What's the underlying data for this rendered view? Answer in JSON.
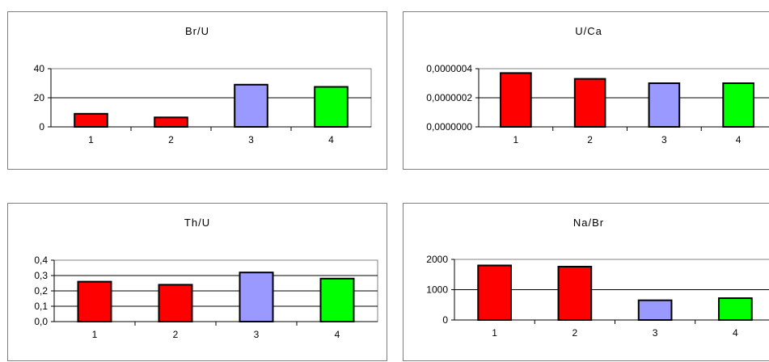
{
  "chart_data": [
    {
      "type": "bar",
      "title": "Br/U",
      "categories": [
        "1",
        "2",
        "3",
        "4"
      ],
      "values": [
        9,
        6.5,
        29,
        27.5
      ],
      "bar_colors": [
        "#ff0000",
        "#ff0000",
        "#9999ff",
        "#00ff00"
      ],
      "yticks": [
        "0",
        "20",
        "40"
      ],
      "ylim": [
        0,
        40
      ],
      "grid": true
    },
    {
      "type": "bar",
      "title": "U/Ca",
      "categories": [
        "1",
        "2",
        "3",
        "4"
      ],
      "values": [
        3.7e-07,
        3.3e-07,
        3e-07,
        3e-07
      ],
      "bar_colors": [
        "#ff0000",
        "#ff0000",
        "#9999ff",
        "#00ff00"
      ],
      "yticks": [
        "0,0000000",
        "0,0000002",
        "0,0000004"
      ],
      "ylim": [
        0,
        4e-07
      ],
      "grid": true
    },
    {
      "type": "bar",
      "title": "Th/U",
      "categories": [
        "1",
        "2",
        "3",
        "4"
      ],
      "values": [
        0.26,
        0.24,
        0.32,
        0.28
      ],
      "bar_colors": [
        "#ff0000",
        "#ff0000",
        "#9999ff",
        "#00ff00"
      ],
      "yticks": [
        "0,0",
        "0,1",
        "0,2",
        "0,3",
        "0,4"
      ],
      "ylim": [
        0,
        0.4
      ],
      "grid": true
    },
    {
      "type": "bar",
      "title": "Na/Br",
      "categories": [
        "1",
        "2",
        "3",
        "4"
      ],
      "values": [
        1800,
        1760,
        650,
        720
      ],
      "bar_colors": [
        "#ff0000",
        "#ff0000",
        "#9999ff",
        "#00ff00"
      ],
      "yticks": [
        "0",
        "1000",
        "2000"
      ],
      "ylim": [
        0,
        2000
      ],
      "grid": true
    }
  ]
}
